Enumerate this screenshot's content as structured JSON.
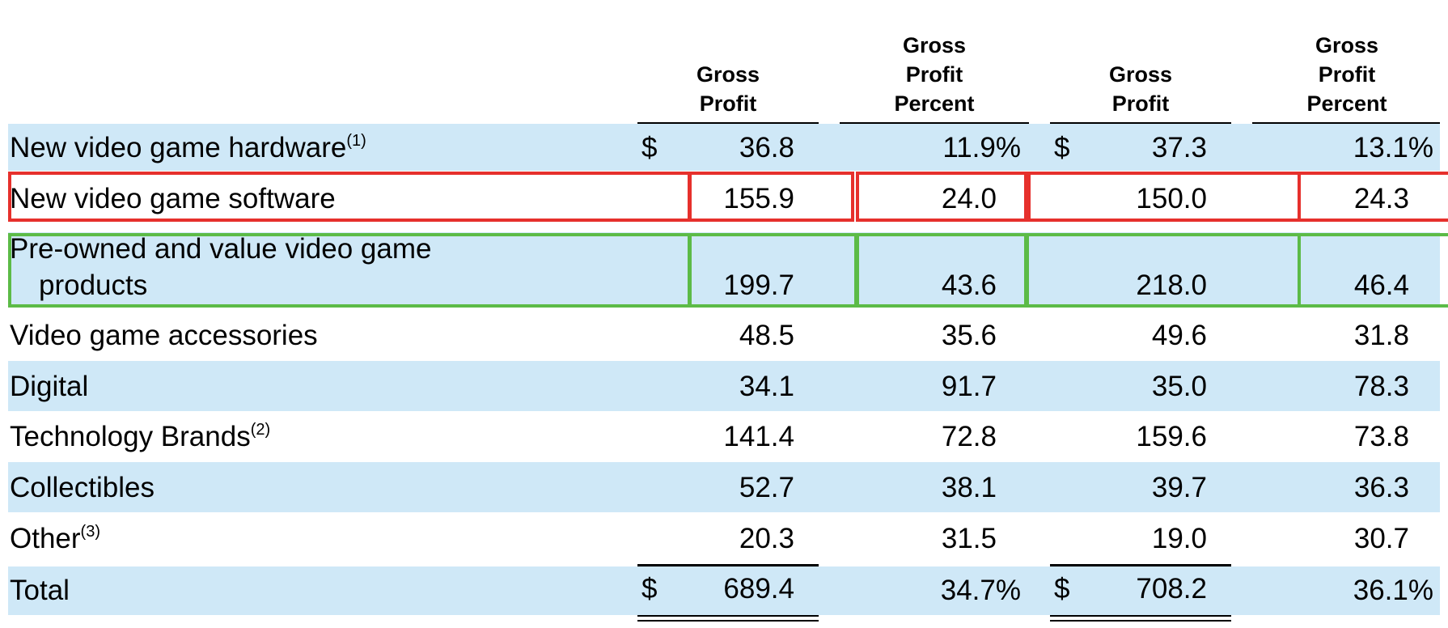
{
  "headers": [
    {
      "lines": [
        "Gross",
        "Profit"
      ]
    },
    {
      "lines": [
        "Gross",
        "Profit",
        "Percent"
      ]
    },
    {
      "lines": [
        "Gross",
        "Profit"
      ]
    },
    {
      "lines": [
        "Gross",
        "Profit",
        "Percent"
      ]
    }
  ],
  "rows": [
    {
      "label": "New video game hardware",
      "note": "(1)",
      "values": [
        "36.8",
        "11.9%",
        "37.3",
        "13.1%"
      ],
      "dollar1": "$",
      "dollar2": "$"
    },
    {
      "label": "New video game software",
      "note": "",
      "values": [
        "155.9",
        "24.0",
        "150.0",
        "24.3"
      ]
    },
    {
      "label": "Pre-owned and value video game",
      "label2": "products",
      "note": "",
      "values": [
        "199.7",
        "43.6",
        "218.0",
        "46.4"
      ]
    },
    {
      "label": "Video game accessories",
      "note": "",
      "values": [
        "48.5",
        "35.6",
        "49.6",
        "31.8"
      ]
    },
    {
      "label": "Digital",
      "note": "",
      "values": [
        "34.1",
        "91.7",
        "35.0",
        "78.3"
      ]
    },
    {
      "label": "Technology Brands",
      "note": "(2)",
      "values": [
        "141.4",
        "72.8",
        "159.6",
        "73.8"
      ]
    },
    {
      "label": "Collectibles",
      "note": "",
      "values": [
        "52.7",
        "38.1",
        "39.7",
        "36.3"
      ]
    },
    {
      "label": "Other",
      "note": "(3)",
      "values": [
        "20.3",
        "31.5",
        "19.0",
        "30.7"
      ]
    },
    {
      "label": "Total",
      "note": "",
      "values": [
        "689.4",
        "34.7%",
        "708.2",
        "36.1%"
      ],
      "dollar1": "$",
      "dollar2": "$"
    }
  ],
  "colors": {
    "shade": "#cfe8f7",
    "highlight_red": "#e6302c",
    "highlight_green": "#5cbb47"
  }
}
